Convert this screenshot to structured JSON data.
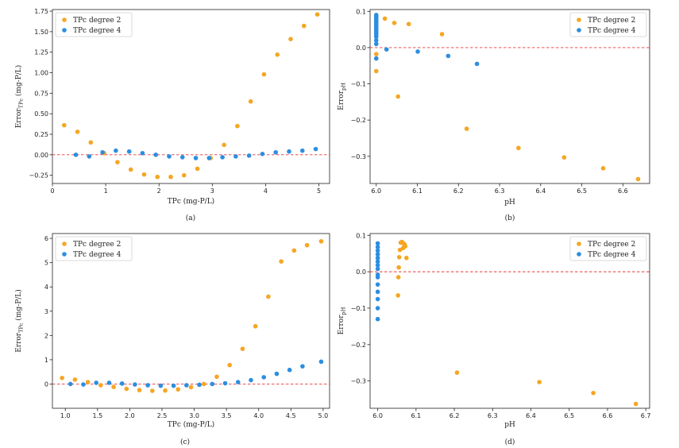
{
  "colors": {
    "orange": "#f5a623",
    "blue": "#2d8ee0",
    "refline": "#e8383b"
  },
  "chart_data": [
    {
      "type": "scatter",
      "caption": "(a)",
      "xlabel": "TPc (mg-P/L)",
      "ylabel_main": "Error",
      "ylabel_sub": "TPc",
      "ylabel_unit": "(mg-P/L)",
      "xlim": [
        0,
        5.2
      ],
      "ylim": [
        -0.35,
        1.77
      ],
      "xticks": [
        0,
        1,
        2,
        3,
        4,
        5
      ],
      "xtick_labels": [
        "0",
        "1",
        "2",
        "3",
        "4",
        "5"
      ],
      "yticks": [
        -0.25,
        0,
        0.25,
        0.5,
        0.75,
        1.0,
        1.25,
        1.5,
        1.75
      ],
      "ytick_labels": [
        "−0.25",
        "0.00",
        "0.25",
        "0.50",
        "0.75",
        "1.00",
        "1.25",
        "1.50",
        "1.75"
      ],
      "hline": 0,
      "legend": [
        "TPc degree 2",
        "TPc degree 4"
      ],
      "series": [
        {
          "name": "TPc degree 2",
          "color": "orange",
          "x": [
            0.22,
            0.47,
            0.72,
            0.97,
            1.22,
            1.47,
            1.72,
            1.97,
            2.22,
            2.47,
            2.72,
            2.97,
            3.22,
            3.47,
            3.72,
            3.97,
            4.22,
            4.47,
            4.72,
            4.97
          ],
          "y": [
            0.36,
            0.28,
            0.15,
            0.02,
            -0.09,
            -0.18,
            -0.24,
            -0.27,
            -0.27,
            -0.25,
            -0.17,
            -0.04,
            0.12,
            0.35,
            0.65,
            0.98,
            1.22,
            1.41,
            1.57,
            1.71
          ]
        },
        {
          "name": "TPc degree 4",
          "color": "blue",
          "x": [
            0.44,
            0.69,
            0.94,
            1.19,
            1.44,
            1.69,
            1.94,
            2.19,
            2.44,
            2.69,
            2.94,
            3.19,
            3.44,
            3.69,
            3.94,
            4.19,
            4.44,
            4.69,
            4.94
          ],
          "y": [
            0.0,
            -0.02,
            0.03,
            0.05,
            0.04,
            0.02,
            0.0,
            -0.02,
            -0.03,
            -0.04,
            -0.04,
            -0.03,
            -0.02,
            -0.01,
            0.01,
            0.03,
            0.04,
            0.05,
            0.07
          ]
        }
      ]
    },
    {
      "type": "scatter",
      "caption": "(b)",
      "xlabel": "pH",
      "ylabel_main": "Error",
      "ylabel_sub": "pH",
      "ylabel_unit": "",
      "xlim": [
        5.985,
        6.665
      ],
      "ylim": [
        -0.375,
        0.105
      ],
      "xticks": [
        6.0,
        6.1,
        6.2,
        6.3,
        6.4,
        6.5,
        6.6
      ],
      "xtick_labels": [
        "6.0",
        "6.1",
        "6.2",
        "6.3",
        "6.4",
        "6.5",
        "6.6"
      ],
      "yticks": [
        -0.3,
        -0.2,
        -0.1,
        0.0,
        0.1
      ],
      "ytick_labels": [
        "−0.3",
        "−0.2",
        "−0.1",
        "0.0",
        "0.1"
      ],
      "hline": 0,
      "legend": [
        "TPc degree 2",
        "TPc degree 4"
      ],
      "series": [
        {
          "name": "TPc degree 2",
          "color": "orange",
          "x": [
            6.0,
            6.0,
            6.021,
            6.044,
            6.053,
            6.079,
            6.16,
            6.22,
            6.346,
            6.457,
            6.552,
            6.637
          ],
          "y": [
            -0.018,
            -0.065,
            0.08,
            0.068,
            -0.135,
            0.065,
            0.037,
            -0.224,
            -0.277,
            -0.303,
            -0.333,
            -0.363
          ]
        },
        {
          "name": "TPc degree 4",
          "color": "blue",
          "x": [
            6.0,
            6.0,
            6.0,
            6.0,
            6.0,
            6.0,
            6.0,
            6.0,
            6.0,
            6.0,
            6.0,
            6.0,
            6.0,
            6.0,
            6.0,
            6.0,
            6.025,
            6.101,
            6.175,
            6.245
          ],
          "y": [
            0.09,
            0.085,
            0.08,
            0.075,
            0.07,
            0.065,
            0.06,
            0.055,
            0.05,
            0.045,
            0.04,
            0.035,
            0.03,
            0.02,
            0.01,
            -0.03,
            -0.005,
            -0.011,
            -0.023,
            -0.045
          ]
        }
      ]
    },
    {
      "type": "scatter",
      "caption": "(c)",
      "xlabel": "TPc (mg-P/L)",
      "ylabel_main": "Error",
      "ylabel_sub": "TPc",
      "ylabel_unit": "(mg-P/L)",
      "xlim": [
        0.8,
        5.1
      ],
      "ylim": [
        -1.0,
        6.2
      ],
      "xticks": [
        1.0,
        1.5,
        2.0,
        2.5,
        3.0,
        3.5,
        4.0,
        4.5,
        5.0
      ],
      "xtick_labels": [
        "1.0",
        "1.5",
        "2.0",
        "2.5",
        "3.0",
        "3.5",
        "4.0",
        "4.5",
        "5.0"
      ],
      "yticks": [
        0,
        1,
        2,
        3,
        4,
        5,
        6
      ],
      "ytick_labels": [
        "0",
        "1",
        "2",
        "3",
        "4",
        "5",
        "6"
      ],
      "hline": 0,
      "legend": [
        "TPc degree 2",
        "TPc degree 4"
      ],
      "series": [
        {
          "name": "TPc degree 2",
          "color": "orange",
          "x": [
            0.95,
            1.15,
            1.35,
            1.55,
            1.75,
            1.95,
            2.15,
            2.35,
            2.55,
            2.75,
            2.95,
            3.15,
            3.35,
            3.55,
            3.75,
            3.95,
            4.15,
            4.35,
            4.55,
            4.75,
            4.97
          ],
          "y": [
            0.25,
            0.18,
            0.08,
            -0.05,
            -0.12,
            -0.2,
            -0.25,
            -0.28,
            -0.27,
            -0.22,
            -0.13,
            0.0,
            0.3,
            0.78,
            1.45,
            2.38,
            3.6,
            5.05,
            5.5,
            5.72,
            5.88
          ]
        },
        {
          "name": "TPc degree 4",
          "color": "blue",
          "x": [
            1.08,
            1.28,
            1.48,
            1.68,
            1.88,
            2.08,
            2.28,
            2.48,
            2.68,
            2.88,
            3.08,
            3.28,
            3.48,
            3.68,
            3.88,
            4.08,
            4.28,
            4.48,
            4.68,
            4.97
          ],
          "y": [
            0.0,
            -0.02,
            0.05,
            0.05,
            0.02,
            -0.02,
            -0.05,
            -0.07,
            -0.07,
            -0.05,
            -0.03,
            0.0,
            0.03,
            0.08,
            0.16,
            0.28,
            0.42,
            0.58,
            0.73,
            0.92
          ]
        }
      ]
    },
    {
      "type": "scatter",
      "caption": "(d)",
      "xlabel": "pH",
      "ylabel_main": "Error",
      "ylabel_sub": "pH",
      "ylabel_unit": "",
      "xlim": [
        5.98,
        6.71
      ],
      "ylim": [
        -0.375,
        0.105
      ],
      "xticks": [
        6.0,
        6.1,
        6.2,
        6.3,
        6.4,
        6.5,
        6.6,
        6.7
      ],
      "xtick_labels": [
        "6.0",
        "6.1",
        "6.2",
        "6.3",
        "6.4",
        "6.5",
        "6.6",
        "6.7"
      ],
      "yticks": [
        -0.3,
        -0.2,
        -0.1,
        0.0,
        0.1
      ],
      "ytick_labels": [
        "−0.3",
        "−0.2",
        "−0.1",
        "0.0",
        "0.1"
      ],
      "hline": 0,
      "legend": [
        "TPc degree 2",
        "TPc degree 4"
      ],
      "series": [
        {
          "name": "TPc degree 2",
          "color": "orange",
          "x": [
            6.06,
            6.063,
            6.066,
            6.068,
            6.07,
            6.072,
            6.066,
            6.058,
            6.075,
            6.056,
            6.055,
            6.054,
            6.053,
            6.207,
            6.422,
            6.563,
            6.674
          ],
          "y": [
            0.08,
            0.082,
            0.079,
            0.077,
            0.075,
            0.07,
            0.065,
            0.06,
            0.038,
            0.04,
            0.012,
            -0.015,
            -0.065,
            -0.277,
            -0.303,
            -0.333,
            -0.363
          ]
        },
        {
          "name": "TPc degree 4",
          "color": "blue",
          "x": [
            6.0,
            6.0,
            6.0,
            6.0,
            6.0,
            6.0,
            6.0,
            6.0,
            6.0,
            6.0,
            6.0,
            6.0,
            6.0,
            6.0,
            6.0
          ],
          "y": [
            0.078,
            0.068,
            0.058,
            0.048,
            0.038,
            0.028,
            0.018,
            0.008,
            -0.008,
            -0.015,
            -0.035,
            -0.055,
            -0.075,
            -0.1,
            -0.13
          ]
        }
      ]
    }
  ]
}
